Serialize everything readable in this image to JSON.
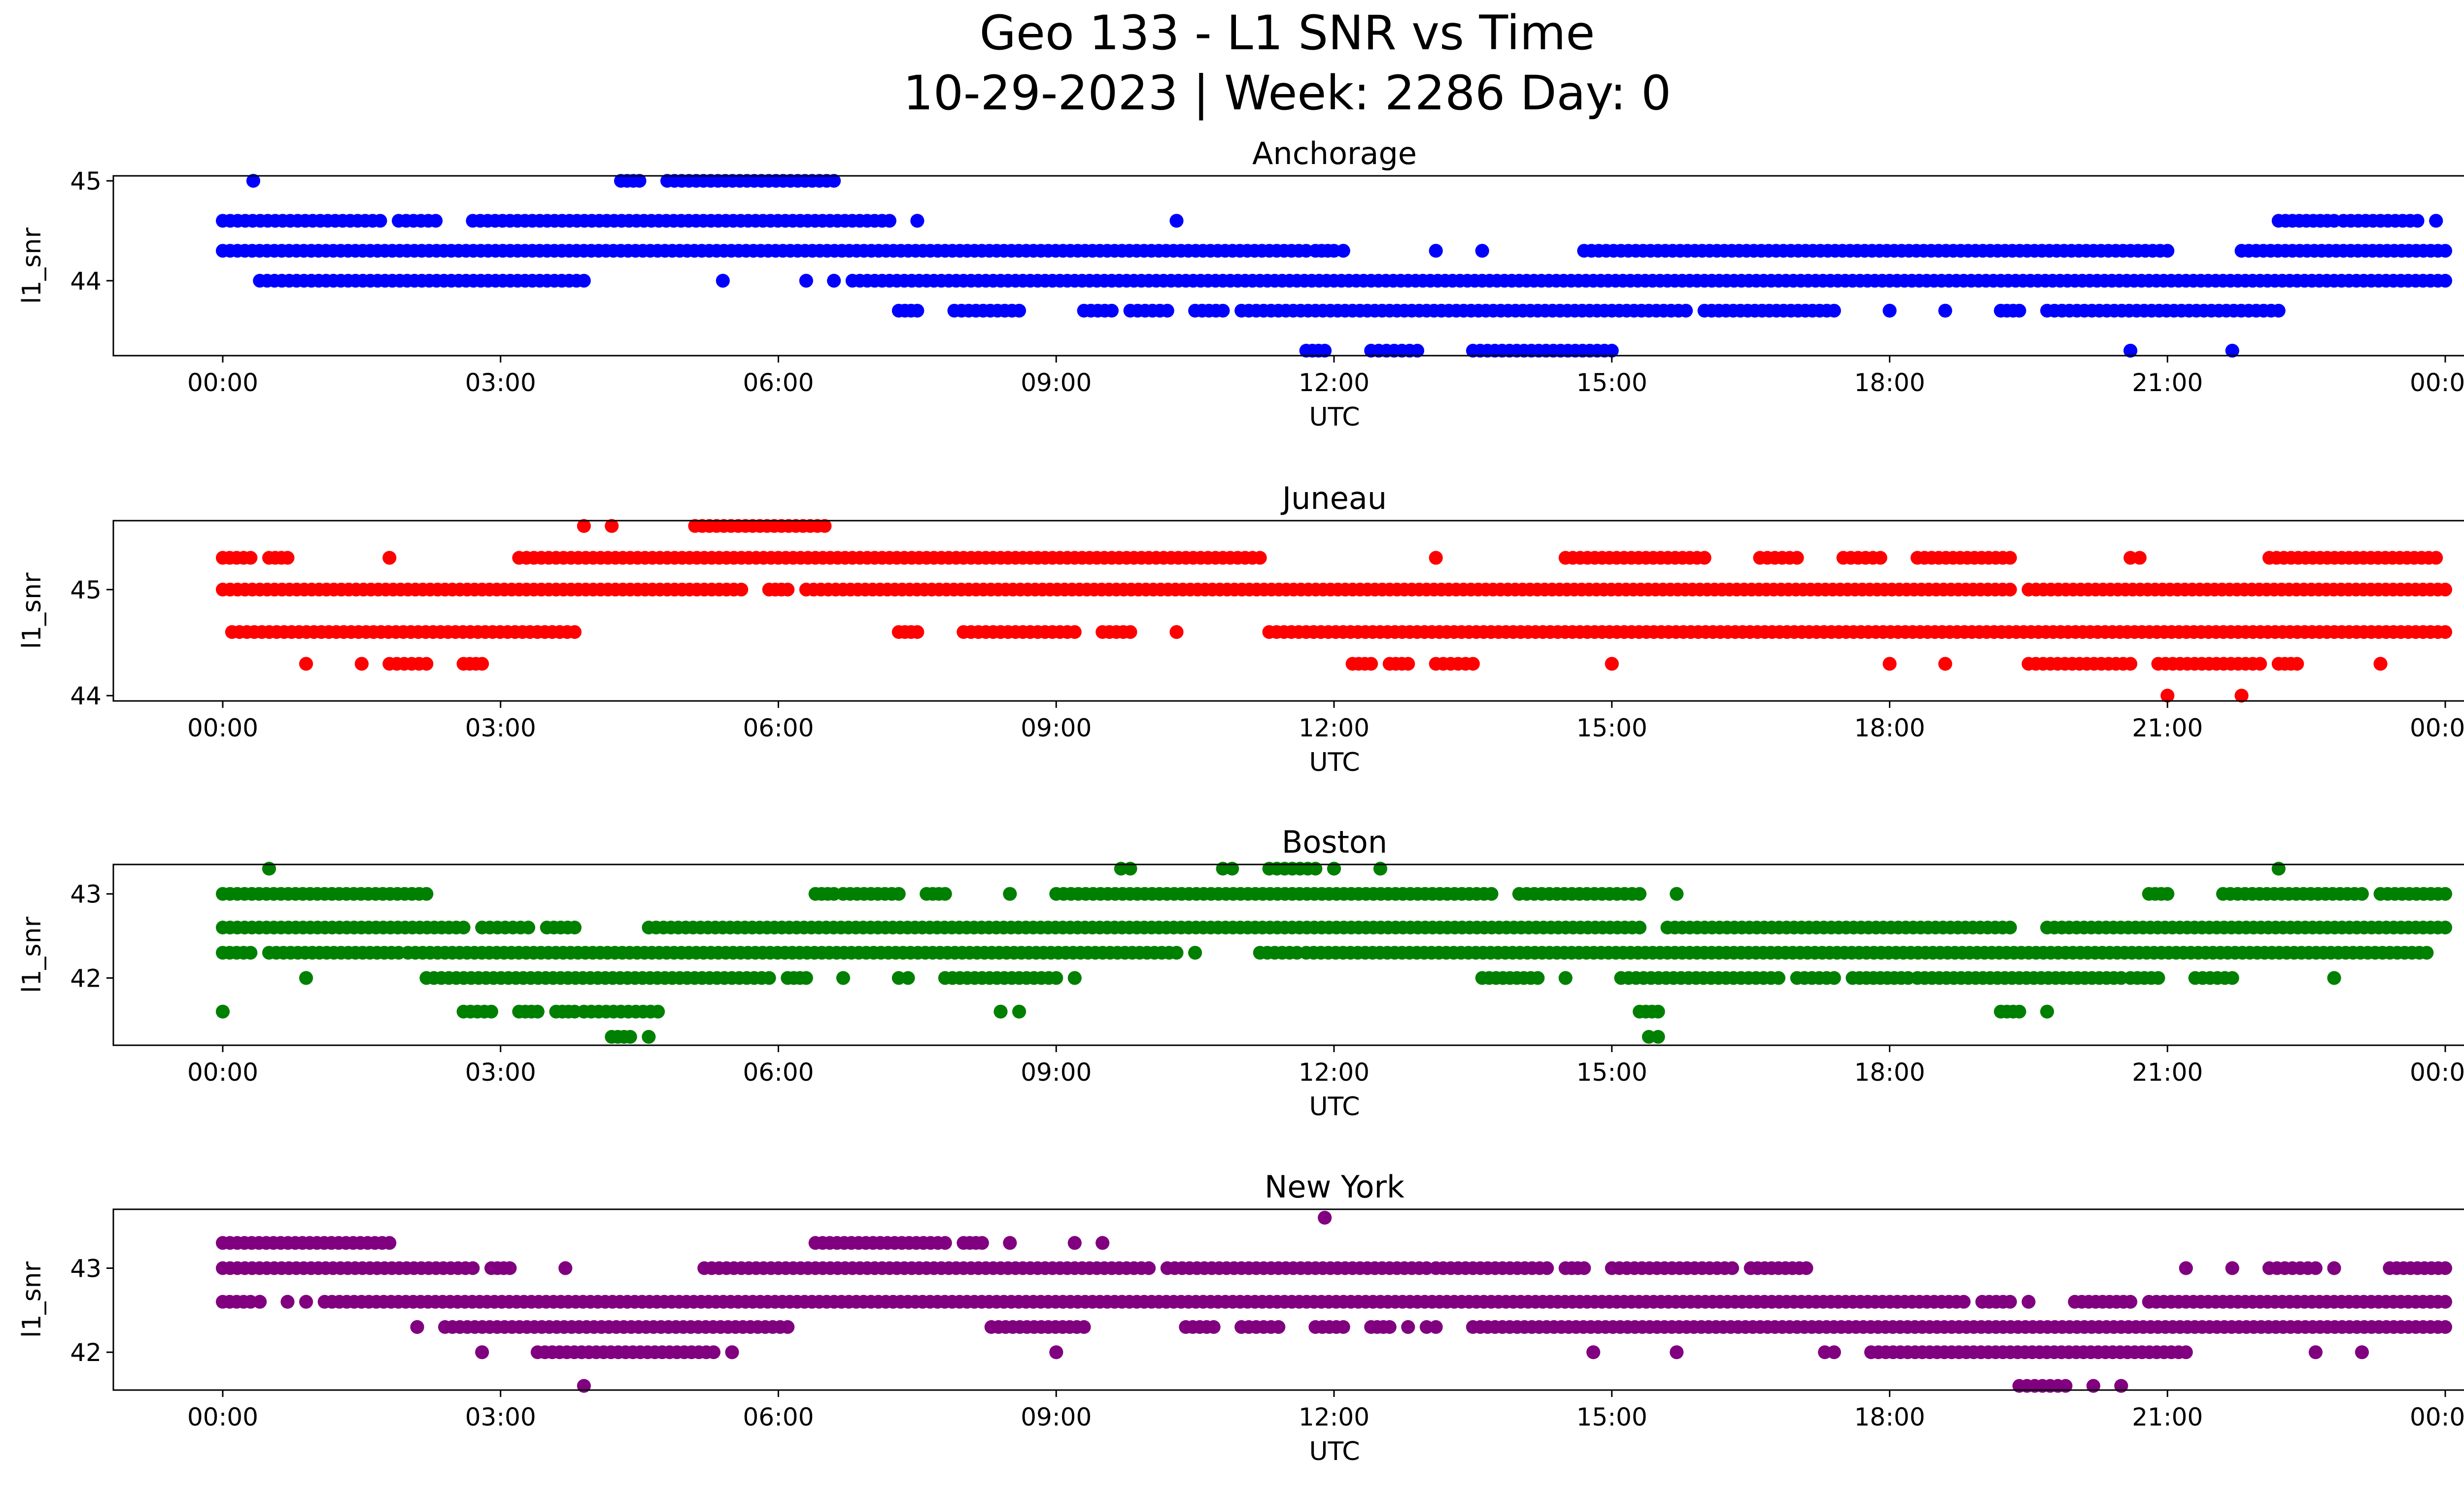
{
  "figure": {
    "title_line1": "Geo 133 - L1 SNR vs Time",
    "title_line2": "10-29-2023 | Week: 2286 Day: 0"
  },
  "chart_data": [
    {
      "type": "scatter",
      "title": "Anchorage",
      "xlabel": "UTC",
      "ylabel": "l1_snr",
      "color": "#0000ff",
      "xlim": [
        "00:00",
        "24:00"
      ],
      "ylim": [
        43.25,
        45.05
      ],
      "xticks": [
        "00:00",
        "03:00",
        "06:00",
        "09:00",
        "12:00",
        "15:00",
        "18:00",
        "21:00",
        "00:00"
      ],
      "yticks": [
        44,
        45
      ],
      "grid": false,
      "levels": [
        {
          "y": 45.0,
          "x": [
            [
              0.33,
              0.33
            ],
            [
              4.3,
              4.5
            ],
            [
              4.8,
              6.6
            ]
          ]
        },
        {
          "y": 44.6,
          "x": [
            [
              0.0,
              1.7
            ],
            [
              1.9,
              2.3
            ],
            [
              2.7,
              7.2
            ],
            [
              7.5,
              7.5
            ],
            [
              10.3,
              10.3
            ],
            [
              22.2,
              22.8
            ],
            [
              22.9,
              23.7
            ],
            [
              23.9,
              23.9
            ]
          ]
        },
        {
          "y": 44.3,
          "x": [
            [
              0.0,
              11.7
            ],
            [
              11.8,
              12.0
            ],
            [
              12.1,
              12.1
            ],
            [
              13.1,
              13.1
            ],
            [
              13.6,
              13.6
            ],
            [
              14.7,
              21.0
            ],
            [
              21.8,
              24.0
            ]
          ]
        },
        {
          "y": 44.0,
          "x": [
            [
              0.4,
              3.9
            ],
            [
              5.4,
              5.4
            ],
            [
              6.3,
              6.3
            ],
            [
              6.6,
              6.6
            ],
            [
              6.8,
              24.0
            ]
          ]
        },
        {
          "y": 43.7,
          "x": [
            [
              7.3,
              7.5
            ],
            [
              7.9,
              8.6
            ],
            [
              9.3,
              9.6
            ],
            [
              9.8,
              10.2
            ],
            [
              10.5,
              10.8
            ],
            [
              11.0,
              15.8
            ],
            [
              16.0,
              17.4
            ],
            [
              18.0,
              18.0
            ],
            [
              18.6,
              18.6
            ],
            [
              19.2,
              19.4
            ],
            [
              19.7,
              22.2
            ]
          ]
        },
        {
          "y": 43.3,
          "x": [
            [
              11.7,
              11.9
            ],
            [
              12.4,
              12.9
            ],
            [
              13.5,
              15.0
            ],
            [
              20.6,
              20.6
            ],
            [
              21.7,
              21.7
            ]
          ]
        }
      ]
    },
    {
      "type": "scatter",
      "title": "Juneau",
      "xlabel": "UTC",
      "ylabel": "l1_snr",
      "color": "#ff0000",
      "xlim": [
        "00:00",
        "24:00"
      ],
      "ylim": [
        43.95,
        45.65
      ],
      "xticks": [
        "00:00",
        "03:00",
        "06:00",
        "09:00",
        "12:00",
        "15:00",
        "18:00",
        "21:00",
        "00:00"
      ],
      "yticks": [
        44,
        45
      ],
      "grid": false,
      "levels": [
        {
          "y": 45.6,
          "x": [
            [
              3.9,
              3.9
            ],
            [
              4.2,
              4.2
            ],
            [
              5.1,
              6.5
            ]
          ]
        },
        {
          "y": 45.3,
          "x": [
            [
              0.0,
              0.3
            ],
            [
              0.5,
              0.7
            ],
            [
              1.8,
              1.8
            ],
            [
              3.2,
              11.2
            ],
            [
              13.1,
              13.1
            ],
            [
              14.5,
              16.0
            ],
            [
              16.6,
              17.0
            ],
            [
              17.5,
              17.9
            ],
            [
              18.3,
              19.3
            ],
            [
              20.6,
              20.7
            ],
            [
              22.1,
              23.9
            ]
          ]
        },
        {
          "y": 45.0,
          "x": [
            [
              0.0,
              5.6
            ],
            [
              5.9,
              6.1
            ],
            [
              6.3,
              19.3
            ],
            [
              19.5,
              24.0
            ]
          ]
        },
        {
          "y": 44.6,
          "x": [
            [
              0.1,
              3.8
            ],
            [
              7.3,
              7.5
            ],
            [
              8.0,
              9.2
            ],
            [
              9.5,
              9.8
            ],
            [
              10.3,
              10.3
            ],
            [
              11.3,
              24.0
            ]
          ]
        },
        {
          "y": 44.3,
          "x": [
            [
              0.9,
              0.9
            ],
            [
              1.5,
              1.5
            ],
            [
              1.8,
              2.2
            ],
            [
              2.6,
              2.8
            ],
            [
              12.2,
              12.4
            ],
            [
              12.6,
              12.8
            ],
            [
              13.1,
              13.5
            ],
            [
              15.0,
              15.0
            ],
            [
              18.0,
              18.0
            ],
            [
              18.6,
              18.6
            ],
            [
              19.5,
              20.6
            ],
            [
              20.9,
              22.0
            ],
            [
              22.2,
              22.4
            ],
            [
              23.3,
              23.3
            ]
          ]
        },
        {
          "y": 44.0,
          "x": [
            [
              21.0,
              21.0
            ],
            [
              21.8,
              21.8
            ]
          ]
        }
      ]
    },
    {
      "type": "scatter",
      "title": "Boston",
      "xlabel": "UTC",
      "ylabel": "l1_snr",
      "color": "#008000",
      "xlim": [
        "00:00",
        "24:00"
      ],
      "ylim": [
        41.2,
        43.35
      ],
      "xticks": [
        "00:00",
        "03:00",
        "06:00",
        "09:00",
        "12:00",
        "15:00",
        "18:00",
        "21:00",
        "00:00"
      ],
      "yticks": [
        42,
        43
      ],
      "grid": false,
      "levels": [
        {
          "y": 43.3,
          "x": [
            [
              0.5,
              0.5
            ],
            [
              9.7,
              9.8
            ],
            [
              10.8,
              10.9
            ],
            [
              11.3,
              11.8
            ],
            [
              12.0,
              12.0
            ],
            [
              12.5,
              12.5
            ],
            [
              22.2,
              22.2
            ]
          ]
        },
        {
          "y": 43.0,
          "x": [
            [
              0.0,
              2.2
            ],
            [
              6.4,
              6.6
            ],
            [
              6.7,
              7.3
            ],
            [
              7.6,
              7.8
            ],
            [
              8.5,
              8.5
            ],
            [
              9.0,
              13.7
            ],
            [
              14.0,
              15.3
            ],
            [
              15.7,
              15.7
            ],
            [
              20.8,
              21.0
            ],
            [
              21.6,
              23.1
            ],
            [
              23.3,
              24.0
            ]
          ]
        },
        {
          "y": 42.6,
          "x": [
            [
              0.0,
              2.6
            ],
            [
              2.8,
              3.3
            ],
            [
              3.5,
              3.8
            ],
            [
              4.6,
              15.3
            ],
            [
              15.6,
              19.3
            ],
            [
              19.7,
              24.0
            ]
          ]
        },
        {
          "y": 42.3,
          "x": [
            [
              0.0,
              0.3
            ],
            [
              0.5,
              1.9
            ],
            [
              2.0,
              10.3
            ],
            [
              10.5,
              10.5
            ],
            [
              11.2,
              11.6
            ],
            [
              11.7,
              23.8
            ]
          ]
        },
        {
          "y": 42.0,
          "x": [
            [
              0.9,
              0.9
            ],
            [
              2.2,
              5.9
            ],
            [
              6.1,
              6.3
            ],
            [
              6.7,
              6.7
            ],
            [
              7.3,
              7.4
            ],
            [
              7.8,
              9.0
            ],
            [
              9.2,
              9.2
            ],
            [
              13.6,
              14.2
            ],
            [
              14.5,
              14.5
            ],
            [
              15.1,
              16.8
            ],
            [
              17.0,
              17.4
            ],
            [
              17.6,
              18.2
            ],
            [
              18.3,
              20.5
            ],
            [
              20.6,
              20.9
            ],
            [
              21.3,
              21.7
            ],
            [
              22.8,
              22.8
            ]
          ]
        },
        {
          "y": 41.6,
          "x": [
            [
              0.0,
              0.0
            ],
            [
              2.6,
              2.9
            ],
            [
              3.2,
              3.4
            ],
            [
              3.6,
              3.8
            ],
            [
              3.9,
              4.7
            ],
            [
              8.4,
              8.4
            ],
            [
              8.6,
              8.6
            ],
            [
              15.3,
              15.5
            ],
            [
              19.2,
              19.4
            ],
            [
              19.7,
              19.7
            ]
          ]
        },
        {
          "y": 41.3,
          "x": [
            [
              4.2,
              4.4
            ],
            [
              4.6,
              4.6
            ],
            [
              15.4,
              15.5
            ]
          ]
        }
      ]
    },
    {
      "type": "scatter",
      "title": "New York",
      "xlabel": "UTC",
      "ylabel": "l1_snr",
      "color": "#800080",
      "xlim": [
        "00:00",
        "24:00"
      ],
      "ylim": [
        41.55,
        43.7
      ],
      "xticks": [
        "00:00",
        "03:00",
        "06:00",
        "09:00",
        "12:00",
        "15:00",
        "18:00",
        "21:00",
        "00:00"
      ],
      "yticks": [
        42,
        43
      ],
      "grid": false,
      "levels": [
        {
          "y": 43.6,
          "x": [
            [
              11.9,
              11.9
            ]
          ]
        },
        {
          "y": 43.3,
          "x": [
            [
              0.0,
              1.8
            ],
            [
              6.4,
              7.8
            ],
            [
              8.0,
              8.2
            ],
            [
              8.5,
              8.5
            ],
            [
              9.2,
              9.2
            ],
            [
              9.5,
              9.5
            ]
          ]
        },
        {
          "y": 43.0,
          "x": [
            [
              0.0,
              2.7
            ],
            [
              2.9,
              3.1
            ],
            [
              3.7,
              3.7
            ],
            [
              5.2,
              10.0
            ],
            [
              10.2,
              13.0
            ],
            [
              13.1,
              14.3
            ],
            [
              14.5,
              14.7
            ],
            [
              15.0,
              16.3
            ],
            [
              16.5,
              17.1
            ],
            [
              21.2,
              21.2
            ],
            [
              21.7,
              21.7
            ],
            [
              22.1,
              22.6
            ],
            [
              22.8,
              22.8
            ],
            [
              23.4,
              24.0
            ]
          ]
        },
        {
          "y": 42.6,
          "x": [
            [
              0.0,
              0.3
            ],
            [
              0.4,
              0.4
            ],
            [
              0.7,
              0.7
            ],
            [
              0.9,
              0.9
            ],
            [
              1.1,
              18.8
            ],
            [
              19.0,
              19.3
            ],
            [
              19.5,
              19.5
            ],
            [
              20.0,
              20.6
            ],
            [
              20.8,
              24.0
            ]
          ]
        },
        {
          "y": 42.3,
          "x": [
            [
              2.1,
              2.1
            ],
            [
              2.4,
              6.1
            ],
            [
              8.3,
              9.3
            ],
            [
              10.4,
              10.7
            ],
            [
              11.0,
              11.4
            ],
            [
              11.8,
              12.1
            ],
            [
              12.4,
              12.6
            ],
            [
              12.8,
              12.8
            ],
            [
              13.0,
              13.1
            ],
            [
              13.5,
              24.0
            ]
          ]
        },
        {
          "y": 42.0,
          "x": [
            [
              2.8,
              2.8
            ],
            [
              3.4,
              5.3
            ],
            [
              5.5,
              5.5
            ],
            [
              9.0,
              9.0
            ],
            [
              14.8,
              14.8
            ],
            [
              15.7,
              15.7
            ],
            [
              17.3,
              17.4
            ],
            [
              17.8,
              21.2
            ],
            [
              22.6,
              22.6
            ],
            [
              23.1,
              23.1
            ]
          ]
        },
        {
          "y": 41.6,
          "x": [
            [
              3.9,
              3.9
            ],
            [
              19.4,
              19.9
            ],
            [
              20.2,
              20.2
            ],
            [
              20.5,
              20.5
            ]
          ]
        }
      ]
    }
  ]
}
